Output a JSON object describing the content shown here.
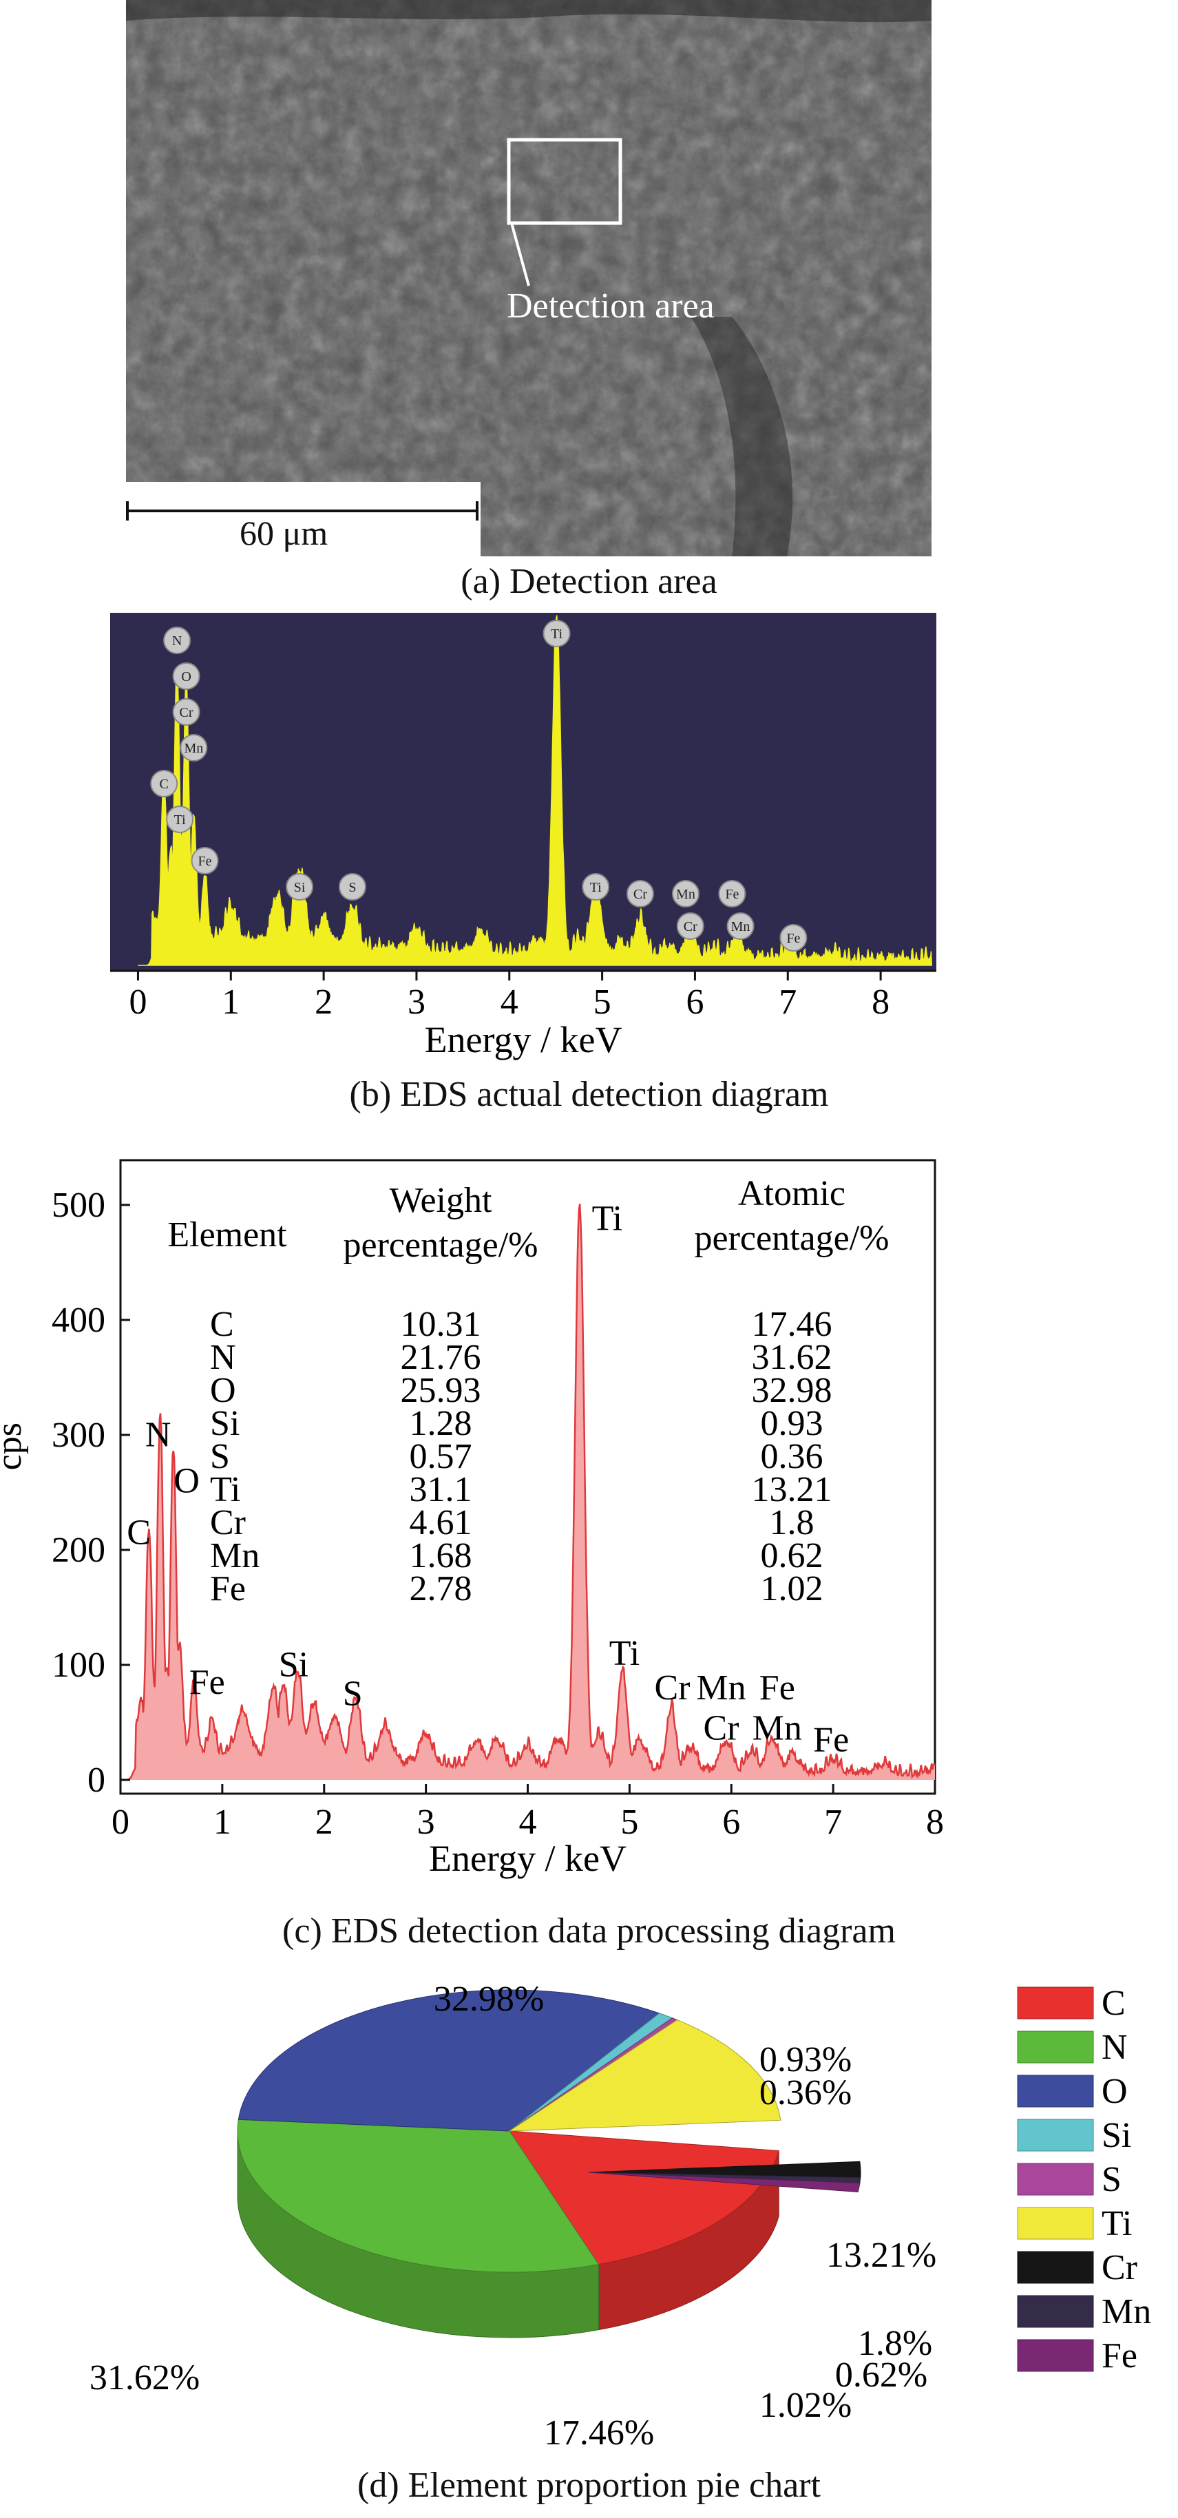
{
  "panel_a": {
    "detection_label": "Detection area",
    "scale_bar": "60 μm",
    "caption": "(a) Detection area"
  },
  "panel_b": {
    "caption": "(b) EDS actual detection diagram",
    "xlabel": "Energy / keV",
    "x_ticks": [
      0,
      1,
      2,
      3,
      4,
      5,
      6,
      7,
      8
    ],
    "colors": {
      "background": "#2e2b4f",
      "signal": "#f2ef20",
      "marker": "#c9c9c9"
    },
    "peak_markers": [
      {
        "label": "N",
        "x": 0.42,
        "stack": 5
      },
      {
        "label": "O",
        "x": 0.52,
        "stack": 4
      },
      {
        "label": "Cr",
        "x": 0.52,
        "stack": 3
      },
      {
        "label": "Mn",
        "x": 0.6,
        "stack": 2
      },
      {
        "label": "C",
        "x": 0.28,
        "stack": 1
      },
      {
        "label": "Ti",
        "x": 0.45,
        "stack": 0
      },
      {
        "label": "Fe",
        "x": 0.72,
        "stack": -1
      },
      {
        "label": "Si",
        "x": 1.74,
        "stack": -2
      },
      {
        "label": "S",
        "x": 2.31,
        "stack": -2
      },
      {
        "label": "Ti",
        "x": 4.51,
        "stack": 6
      },
      {
        "label": "Ti",
        "x": 4.93,
        "stack": -2
      },
      {
        "label": "Cr",
        "x": 5.41,
        "stack": -3
      },
      {
        "label": "Mn",
        "x": 5.9,
        "stack": -3
      },
      {
        "label": "Cr",
        "x": 5.95,
        "stack": -4
      },
      {
        "label": "Fe",
        "x": 6.4,
        "stack": -3
      },
      {
        "label": "Mn",
        "x": 6.49,
        "stack": -4
      },
      {
        "label": "Fe",
        "x": 7.06,
        "stack": -5
      }
    ]
  },
  "panel_c": {
    "caption": "(c) EDS detection data processing diagram",
    "xlabel": "Energy / keV",
    "ylabel": "cps",
    "x_ticks": [
      0,
      1,
      2,
      3,
      4,
      5,
      6,
      7,
      8
    ],
    "y_ticks": [
      0,
      100,
      200,
      300,
      400,
      500
    ],
    "colors": {
      "fill": "#f6a8a8",
      "line": "#e0393b"
    },
    "peak_labels": [
      {
        "label": "C",
        "x": 0.18,
        "y": 205
      },
      {
        "label": "N",
        "x": 0.37,
        "y": 290
      },
      {
        "label": "O",
        "x": 0.65,
        "y": 250
      },
      {
        "label": "Fe",
        "x": 0.85,
        "y": 75
      },
      {
        "label": "Si",
        "x": 1.7,
        "y": 90
      },
      {
        "label": "S",
        "x": 2.28,
        "y": 65
      },
      {
        "label": "Ti",
        "x": 4.78,
        "y": 478
      },
      {
        "label": "Ti",
        "x": 4.95,
        "y": 100
      },
      {
        "label": "Cr",
        "x": 5.42,
        "y": 70
      },
      {
        "label": "Mn",
        "x": 5.9,
        "y": 70
      },
      {
        "label": "Fe",
        "x": 6.45,
        "y": 70
      },
      {
        "label": "Cr",
        "x": 5.9,
        "y": 35
      },
      {
        "label": "Mn",
        "x": 6.45,
        "y": 35
      },
      {
        "label": "Fe",
        "x": 6.98,
        "y": 25
      }
    ],
    "table": {
      "headers": [
        "Element",
        "Weight percentage/%",
        "Atomic percentage/%"
      ],
      "rows": [
        [
          "C",
          "10.31",
          "17.46"
        ],
        [
          "N",
          "21.76",
          "31.62"
        ],
        [
          "O",
          "25.93",
          "32.98"
        ],
        [
          "Si",
          "1.28",
          "0.93"
        ],
        [
          "S",
          "0.57",
          "0.36"
        ],
        [
          "Ti",
          "31.1",
          "13.21"
        ],
        [
          "Cr",
          "4.61",
          "1.8"
        ],
        [
          "Mn",
          "1.68",
          "0.62"
        ],
        [
          "Fe",
          "2.78",
          "1.02"
        ]
      ]
    }
  },
  "panel_d": {
    "caption": "(d) Element proportion pie chart",
    "legend": [
      "C",
      "N",
      "O",
      "Si",
      "S",
      "Ti",
      "Cr",
      "Mn",
      "Fe"
    ],
    "colors": [
      "#e8312e",
      "#5cba3a",
      "#3d4c9c",
      "#62c4cc",
      "#a8479c",
      "#f0e93a",
      "#161616",
      "#352c4a",
      "#7a2874"
    ],
    "labels": [
      "17.46%",
      "31.62%",
      "32.98%",
      "0.93%",
      "0.36%",
      "13.21%",
      "1.8%",
      "0.62%",
      "1.02%"
    ]
  },
  "chart_data": [
    {
      "type": "line",
      "title": "(b) EDS actual detection diagram",
      "xlabel": "Energy / keV",
      "ylabel": "",
      "xlim": [
        -0.3,
        8.6
      ],
      "x": [
        0.0,
        0.18,
        0.28,
        0.35,
        0.42,
        0.48,
        0.52,
        0.6,
        0.72,
        1.0,
        1.5,
        1.74,
        2.0,
        2.31,
        3.0,
        3.7,
        4.3,
        4.51,
        4.75,
        4.93,
        5.2,
        5.41,
        5.7,
        5.95,
        6.2,
        6.45,
        7.0,
        7.5,
        8.5
      ],
      "series": [
        {
          "values": [
            0,
            5,
            45,
            25,
            80,
            30,
            75,
            35,
            18,
            10,
            14,
            22,
            8,
            12,
            6,
            6,
            4,
            100,
            5,
            20,
            4,
            11,
            3,
            6,
            3,
            6,
            3,
            2,
            1
          ]
        }
      ]
    },
    {
      "type": "line",
      "title": "(c) EDS detection data processing diagram",
      "xlabel": "Energy / keV",
      "ylabel": "cps",
      "xlim": [
        0,
        8
      ],
      "ylim": [
        0,
        540
      ],
      "x": [
        0.0,
        0.15,
        0.2,
        0.28,
        0.32,
        0.39,
        0.45,
        0.52,
        0.58,
        0.72,
        0.9,
        1.2,
        1.5,
        1.6,
        1.74,
        1.9,
        2.1,
        2.31,
        2.6,
        3.0,
        3.5,
        3.7,
        4.0,
        4.3,
        4.51,
        4.7,
        4.93,
        5.1,
        5.41,
        5.6,
        5.95,
        6.2,
        6.4,
        6.6,
        7.0,
        7.5,
        8.0
      ],
      "series": [
        {
          "values": [
            0,
            10,
            40,
            190,
            60,
            290,
            70,
            260,
            90,
            60,
            30,
            35,
            60,
            62,
            75,
            45,
            35,
            55,
            30,
            25,
            20,
            22,
            18,
            25,
            490,
            30,
            85,
            25,
            55,
            20,
            25,
            18,
            28,
            15,
            12,
            8,
            5
          ]
        }
      ]
    },
    {
      "type": "pie",
      "title": "(d) Element proportion pie chart",
      "categories": [
        "C",
        "N",
        "O",
        "Si",
        "S",
        "Ti",
        "Cr",
        "Mn",
        "Fe"
      ],
      "values": [
        17.46,
        31.62,
        32.98,
        0.93,
        0.36,
        13.21,
        1.8,
        0.62,
        1.02
      ]
    }
  ]
}
